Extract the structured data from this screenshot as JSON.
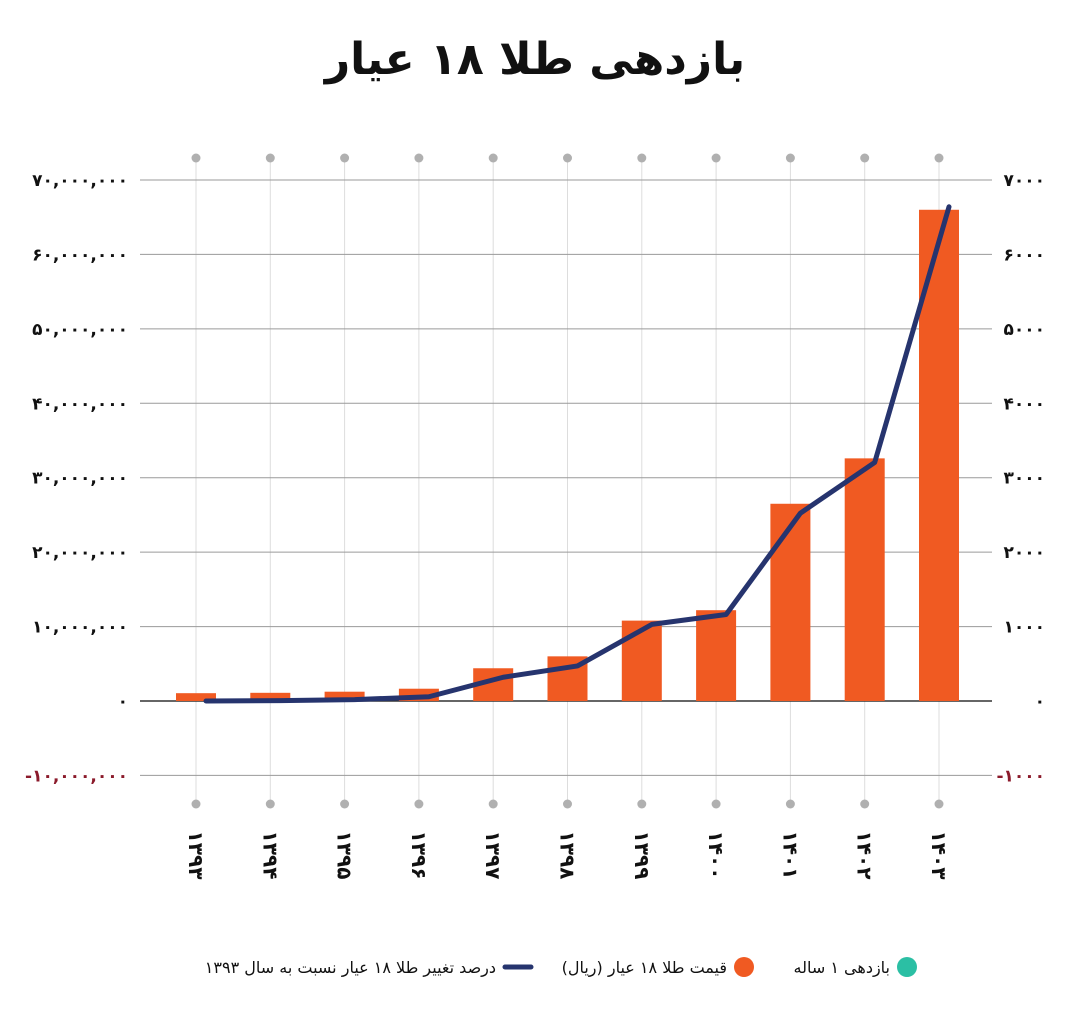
{
  "chart_data": {
    "type": "bar",
    "title": "بازدهی طلا ۱۸ عیار",
    "categories": [
      "۱۳۹۳",
      "۱۳۹۴",
      "۱۳۹۵",
      "۱۳۹۶",
      "۱۳۹۷",
      "۱۳۹۸",
      "۱۳۹۹",
      "۱۴۰۰",
      "۱۴۰۱",
      "۱۴۰۲",
      "۱۴۰۳"
    ],
    "series": [
      {
        "name": "قیمت طلا ۱۸ عیار (ریال)",
        "kind": "bar",
        "axis": "left",
        "color": "#f05a22",
        "values": [
          1050000,
          1100000,
          1250000,
          1650000,
          4400000,
          6000000,
          10800000,
          12200000,
          26500000,
          32600000,
          66000000
        ]
      },
      {
        "name": "درصد تغییر طلا ۱۸ عیار نسبت به سال ۱۳۹۳",
        "kind": "line",
        "axis": "right",
        "color": "#26346e",
        "values": [
          0,
          5,
          19,
          57,
          319,
          471,
          1029,
          1162,
          2524,
          3205,
          6640
        ]
      }
    ],
    "left_axis": {
      "ylim": [
        -10000000,
        70000000
      ],
      "ticks": [
        70000000,
        60000000,
        50000000,
        40000000,
        30000000,
        20000000,
        10000000,
        0,
        -10000000
      ],
      "tick_labels": [
        "۷۰,۰۰۰,۰۰۰",
        "۶۰,۰۰۰,۰۰۰",
        "۵۰,۰۰۰,۰۰۰",
        "۴۰,۰۰۰,۰۰۰",
        "۳۰,۰۰۰,۰۰۰",
        "۲۰,۰۰۰,۰۰۰",
        "۱۰,۰۰۰,۰۰۰",
        "۰",
        "-۱۰,۰۰۰,۰۰۰"
      ]
    },
    "right_axis": {
      "ylim": [
        -1000,
        7000
      ],
      "ticks": [
        7000,
        6000,
        5000,
        4000,
        3000,
        2000,
        1000,
        0,
        -1000
      ],
      "tick_labels": [
        "۷۰۰۰",
        "۶۰۰۰",
        "۵۰۰۰",
        "۴۰۰۰",
        "۳۰۰۰",
        "۲۰۰۰",
        "۱۰۰۰",
        "۰",
        "-۱۰۰۰"
      ]
    },
    "grid": true,
    "legend_position": "bottom",
    "legend": [
      {
        "label": "بازدهی ۱ ساله",
        "marker": "circle",
        "color": "#2bbfa4"
      },
      {
        "label": "قیمت طلا ۱۸ عیار (ریال)",
        "marker": "circle",
        "color": "#f05a22"
      },
      {
        "label": "درصد تغییر طلا ۱۸ عیار نسبت به سال ۱۳۹۳",
        "marker": "line",
        "color": "#26346e"
      }
    ],
    "colors": {
      "negative_tick": "#8b1a2b",
      "gridline": "#9a9a9a",
      "guide": "#dddddd",
      "dot": "#b0b0b0"
    }
  }
}
